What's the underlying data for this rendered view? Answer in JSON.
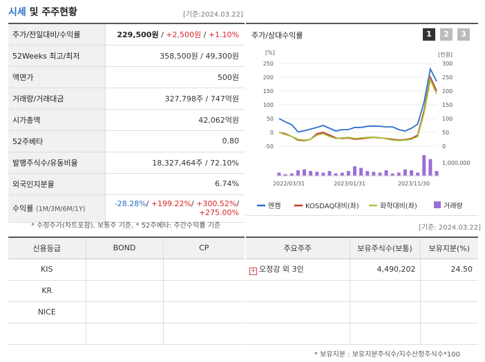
{
  "header": {
    "title_accent": "시세",
    "title_rest": " 및 주주현황",
    "base_date": "[기준:2024.03.22]"
  },
  "price_rows": [
    {
      "label": "주가/전일대비/수익률",
      "price": "229,500원",
      "sep1": " / ",
      "change": "+2,500원",
      "sep2": " / ",
      "rate": "+1.10%"
    },
    {
      "label": "52Weeks 최고/최저",
      "value": "358,500원 / 49,300원"
    },
    {
      "label": "액면가",
      "value": "500원"
    },
    {
      "label": "거래량/거래대금",
      "value": "327,798주 / 747억원"
    },
    {
      "label": "시가총액",
      "value": "42,062억원"
    },
    {
      "label": "52주베타",
      "value": "0.80"
    },
    {
      "label": "발행주식수/유동비율",
      "value": "18,327,464주 / 72.10%"
    },
    {
      "label": "외국인지분율",
      "value": "6.74%"
    },
    {
      "label": "수익률",
      "label_sub": "(1M/3M/6M/1Y)",
      "r1": "-28.28%",
      "r2": "+199.22%",
      "r3": "+300.52%",
      "r4": "+275.00%"
    }
  ],
  "footnote_left": "* 수정주가(차트포함), 보통주 기준, * 52주베타: 주간수익률 기준",
  "chart_panel": {
    "title": "주가/상대수익률",
    "tabs": [
      "1",
      "2",
      "3"
    ],
    "active_tab": 0,
    "accent": "#333333",
    "inactive": "#bbbbbb"
  },
  "chart_data": {
    "type": "line",
    "left_axis_unit": "[%]",
    "right_axis_unit": "[천원]",
    "left_ticks": [
      "250",
      "200",
      "150",
      "100",
      "50",
      "0",
      "-50"
    ],
    "left_range": [
      -50,
      250
    ],
    "right_ticks": [
      "300",
      "250",
      "200",
      "150",
      "100",
      "50",
      "0"
    ],
    "right_range": [
      0,
      300
    ],
    "volume_tick": "1,000,000",
    "x_labels": [
      "2022/03/31",
      "2023/01/31",
      "2023/11/30"
    ],
    "series": [
      {
        "name": "엔켐",
        "color": "#2a6fc9",
        "values": [
          50,
          38,
          28,
          2,
          6,
          12,
          18,
          25,
          15,
          5,
          10,
          10,
          18,
          18,
          22,
          23,
          22,
          20,
          20,
          10,
          5,
          15,
          30,
          110,
          230,
          185
        ]
      },
      {
        "name": "KOSDAQ대비(좌)",
        "color": "#c0392b",
        "values": [
          0,
          -5,
          -15,
          -28,
          -30,
          -25,
          -5,
          0,
          -10,
          -20,
          -22,
          -20,
          -25,
          -23,
          -20,
          -18,
          -20,
          -22,
          -25,
          -28,
          -26,
          -22,
          -10,
          80,
          200,
          150
        ]
      },
      {
        "name": "화학대비(좌)",
        "color": "#a5c739",
        "values": [
          0,
          -8,
          -15,
          -25,
          -28,
          -25,
          -10,
          -5,
          -15,
          -22,
          -20,
          -18,
          -22,
          -20,
          -18,
          -17,
          -19,
          -23,
          -28,
          -30,
          -28,
          -25,
          -15,
          70,
          190,
          140
        ]
      }
    ],
    "volume": {
      "name": "거래량",
      "color": "#9b6fd6",
      "values": [
        0.2,
        0.1,
        0.15,
        0.35,
        0.4,
        0.3,
        0.25,
        0.2,
        0.3,
        0.15,
        0.2,
        0.3,
        0.6,
        0.5,
        0.3,
        0.25,
        0.2,
        0.35,
        0.15,
        0.2,
        0.4,
        0.35,
        0.2,
        1.3,
        1.05,
        0.3
      ]
    }
  },
  "credit": {
    "headers": [
      "신용등급",
      "BOND",
      "CP"
    ],
    "rows": [
      {
        "agency": "KIS",
        "bond": "",
        "cp": ""
      },
      {
        "agency": "KR",
        "bond": "",
        "cp": ""
      },
      {
        "agency": "NICE",
        "bond": "",
        "cp": ""
      },
      {
        "agency": "",
        "bond": "",
        "cp": ""
      }
    ]
  },
  "holders": {
    "base_date": "[기준: 2024.03.22]",
    "headers": [
      "주요주주",
      "보유주식수(보통)",
      "보유지분(%)"
    ],
    "rows": [
      {
        "name": "오정강 외 3인",
        "shares": "4,490,202",
        "ratio": "24.50"
      },
      {
        "name": "",
        "shares": "",
        "ratio": ""
      },
      {
        "name": "",
        "shares": "",
        "ratio": ""
      },
      {
        "name": "",
        "shares": "",
        "ratio": ""
      }
    ],
    "footnote": "* 보유지분 : 보유지분주식수/지수산정주식수*100"
  }
}
